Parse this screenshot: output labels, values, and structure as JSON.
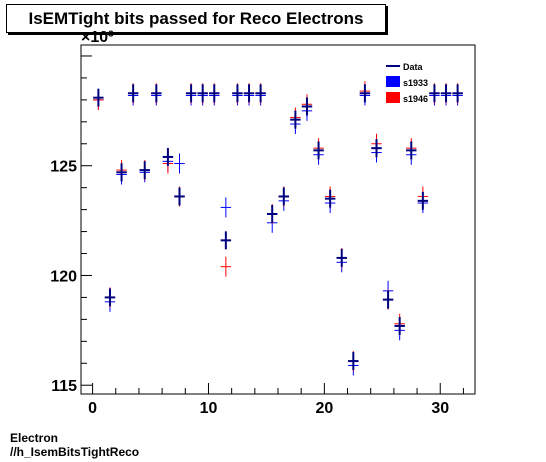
{
  "chart_data": {
    "type": "scatter",
    "title": "IsEMTight bits passed for Reco Electrons",
    "y_exponent_label": "×10³",
    "xlim": [
      -1,
      33
    ],
    "ylim": [
      114.6,
      130.5
    ],
    "x_ticks": [
      0,
      10,
      20,
      30
    ],
    "y_ticks": [
      115,
      120,
      125
    ],
    "grid": false,
    "legend_position": "top-right",
    "series": [
      {
        "name": "Data",
        "color": "#00007f",
        "marker": "line",
        "points": [
          [
            0,
            128.1
          ],
          [
            1,
            119.0
          ],
          [
            2,
            124.7
          ],
          [
            3,
            128.3
          ],
          [
            4,
            124.8
          ],
          [
            5,
            128.3
          ],
          [
            6,
            125.4
          ],
          [
            7,
            123.6
          ],
          [
            8,
            128.3
          ],
          [
            9,
            128.3
          ],
          [
            10,
            128.3
          ],
          [
            11,
            121.6
          ],
          [
            12,
            128.3
          ],
          [
            13,
            128.3
          ],
          [
            14,
            128.3
          ],
          [
            15,
            122.8
          ],
          [
            16,
            123.6
          ],
          [
            17,
            127.1
          ],
          [
            18,
            127.7
          ],
          [
            19,
            125.7
          ],
          [
            20,
            123.5
          ],
          [
            21,
            120.8
          ],
          [
            22,
            116.1
          ],
          [
            23,
            128.3
          ],
          [
            24,
            125.8
          ],
          [
            25,
            118.9
          ],
          [
            26,
            117.7
          ],
          [
            27,
            125.7
          ],
          [
            28,
            123.4
          ],
          [
            29,
            128.3
          ],
          [
            30,
            128.3
          ],
          [
            31,
            128.3
          ]
        ]
      },
      {
        "name": "s1933",
        "color": "#0000ff",
        "marker": "fill",
        "points": [
          [
            0,
            128.0
          ],
          [
            1,
            118.8
          ],
          [
            2,
            124.6
          ],
          [
            3,
            128.2
          ],
          [
            4,
            124.7
          ],
          [
            5,
            128.2
          ],
          [
            6,
            125.2
          ],
          [
            7,
            125.1
          ],
          [
            8,
            128.2
          ],
          [
            9,
            128.2
          ],
          [
            10,
            128.2
          ],
          [
            11,
            123.1
          ],
          [
            12,
            128.2
          ],
          [
            13,
            128.2
          ],
          [
            14,
            128.2
          ],
          [
            15,
            122.4
          ],
          [
            16,
            123.4
          ],
          [
            17,
            126.9
          ],
          [
            18,
            127.5
          ],
          [
            19,
            125.5
          ],
          [
            20,
            123.3
          ],
          [
            21,
            120.6
          ],
          [
            22,
            115.9
          ],
          [
            23,
            128.2
          ],
          [
            24,
            125.6
          ],
          [
            25,
            119.3
          ],
          [
            26,
            117.5
          ],
          [
            27,
            125.5
          ],
          [
            28,
            123.3
          ],
          [
            29,
            128.2
          ],
          [
            30,
            128.2
          ],
          [
            31,
            128.2
          ]
        ]
      },
      {
        "name": "s1946",
        "color": "#ff0000",
        "marker": "fill",
        "points": [
          [
            0,
            128.0
          ],
          [
            1,
            119.0
          ],
          [
            2,
            124.8
          ],
          [
            3,
            128.3
          ],
          [
            4,
            124.8
          ],
          [
            5,
            128.3
          ],
          [
            6,
            125.1
          ],
          [
            7,
            123.6
          ],
          [
            8,
            128.3
          ],
          [
            9,
            128.3
          ],
          [
            10,
            128.3
          ],
          [
            11,
            120.4
          ],
          [
            12,
            128.3
          ],
          [
            13,
            128.3
          ],
          [
            14,
            128.3
          ],
          [
            15,
            122.8
          ],
          [
            16,
            123.6
          ],
          [
            17,
            127.2
          ],
          [
            18,
            127.8
          ],
          [
            19,
            125.8
          ],
          [
            20,
            123.6
          ],
          [
            21,
            120.8
          ],
          [
            22,
            116.1
          ],
          [
            23,
            128.4
          ],
          [
            24,
            126.0
          ],
          [
            25,
            118.9
          ],
          [
            26,
            117.8
          ],
          [
            27,
            125.8
          ],
          [
            28,
            123.6
          ],
          [
            29,
            128.3
          ],
          [
            30,
            128.3
          ],
          [
            31,
            128.3
          ]
        ]
      }
    ]
  },
  "footer": {
    "line1": "Electron",
    "line2": "//h_IsemBitsTightReco"
  }
}
